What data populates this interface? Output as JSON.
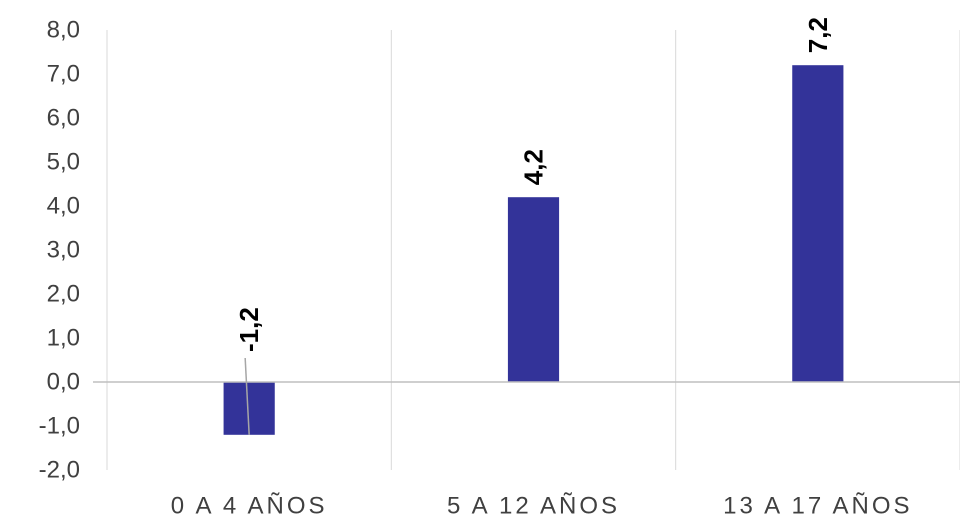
{
  "chart_data": {
    "type": "bar",
    "categories": [
      "0 A 4 AÑOS",
      "5 A 12 AÑOS",
      "13 A 17 AÑOS"
    ],
    "values": [
      -1.2,
      4.2,
      7.2
    ],
    "data_labels": [
      "-1,2",
      "4,2",
      "7,2"
    ],
    "title": "",
    "xlabel": "",
    "ylabel": "",
    "ylim": [
      -2,
      8
    ],
    "yticks": [
      8,
      7,
      6,
      5,
      4,
      3,
      2,
      1,
      0,
      -1,
      -2
    ],
    "ytick_labels": [
      "8,0",
      "7,0",
      "6,0",
      "5,0",
      "4,0",
      "3,0",
      "2,0",
      "1,0",
      "0,0",
      "-1,0",
      "-2,0"
    ],
    "grid": "vertical",
    "legend": "none",
    "colors": {
      "bar": "#333399",
      "grid": "#d9d9d9",
      "axis": "#bfbfbf",
      "leader": "#a6a6a6"
    }
  }
}
